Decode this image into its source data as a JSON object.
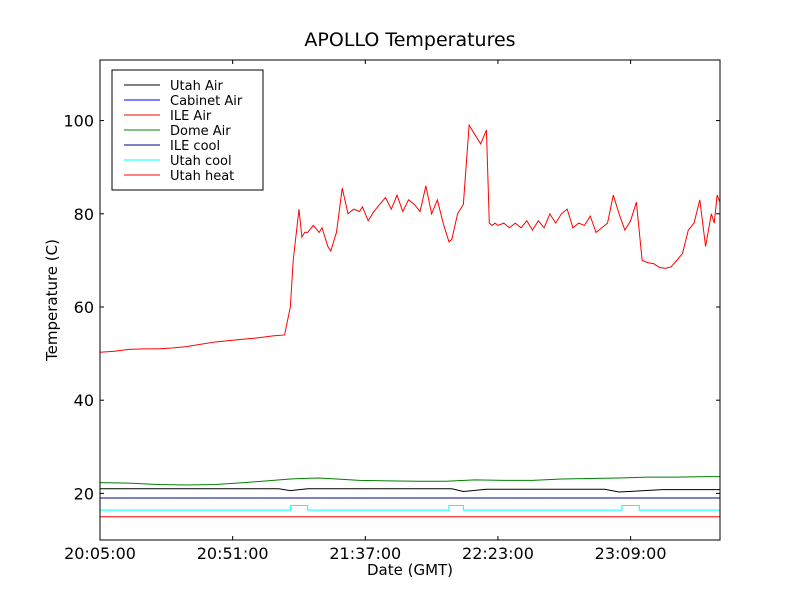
{
  "chart_data": {
    "type": "line",
    "title": "APOLLO Temperatures",
    "xlabel": "Date (GMT)",
    "ylabel": "Temperature (C)",
    "x_unit": "minutes since 20:05:00",
    "xlim": [
      0,
      215
    ],
    "ylim": [
      10,
      113
    ],
    "x_ticks": [
      0,
      46,
      92,
      138,
      184
    ],
    "x_tick_labels": [
      "20:05:00",
      "20:51:00",
      "21:37:00",
      "22:23:00",
      "23:09:00"
    ],
    "y_ticks": [
      20,
      40,
      60,
      80,
      100
    ],
    "y_tick_labels": [
      "20",
      "40",
      "60",
      "80",
      "100"
    ],
    "legend_position": "upper-left",
    "series": [
      {
        "name": "Utah Air",
        "color": "#000000",
        "x": [
          0,
          62,
          66,
          72,
          122,
          126,
          134,
          175,
          180,
          195,
          215
        ],
        "y": [
          21,
          21,
          20.6,
          21,
          21,
          20.4,
          20.9,
          20.9,
          20.3,
          20.8,
          20.8
        ]
      },
      {
        "name": "Cabinet Air",
        "color": "#0000ff",
        "x": [
          0,
          215
        ],
        "y": [
          19,
          19
        ]
      },
      {
        "name": "ILE Air",
        "color": "#ff0000",
        "x": [
          0,
          5,
          10,
          15,
          20,
          25,
          30,
          35,
          40,
          45,
          50,
          55,
          60,
          64,
          66,
          67,
          69,
          70,
          71,
          72,
          74,
          76,
          77,
          79,
          80,
          82,
          84,
          86,
          88,
          90,
          91,
          93,
          95,
          97,
          99,
          101,
          103,
          105,
          107,
          109,
          111,
          113,
          115,
          117,
          119,
          121,
          122,
          124,
          126,
          128,
          130,
          132,
          134,
          135,
          136,
          137,
          138,
          140,
          142,
          144,
          146,
          148,
          150,
          152,
          154,
          156,
          158,
          160,
          162,
          164,
          166,
          168,
          170,
          172,
          174,
          176,
          178,
          180,
          182,
          184,
          186,
          188,
          190,
          192,
          194,
          196,
          198,
          200,
          202,
          204,
          206,
          208,
          210,
          212,
          213,
          214,
          215
        ],
        "y": [
          50.3,
          50.5,
          50.9,
          51,
          51,
          51.2,
          51.5,
          52,
          52.5,
          52.8,
          53.1,
          53.4,
          53.8,
          54,
          60,
          70,
          81,
          75,
          76,
          76,
          77.5,
          76,
          77,
          73,
          72,
          76,
          85.5,
          80,
          81,
          80.5,
          81.5,
          78.5,
          80.5,
          82,
          83.5,
          81,
          84,
          80.5,
          83,
          82,
          80.5,
          86,
          80,
          83,
          78,
          74,
          74.5,
          80,
          82,
          99,
          97,
          95,
          98,
          78,
          77.5,
          78,
          77.5,
          78,
          77,
          78,
          77,
          78.5,
          76.5,
          78.5,
          77,
          80,
          78,
          80,
          81,
          77,
          78,
          77.5,
          79.5,
          76,
          77,
          78,
          84,
          80,
          76.5,
          78.5,
          82.5,
          70,
          69.5,
          69.3,
          68.5,
          68.3,
          68.6,
          70,
          71.5,
          76.5,
          78,
          83,
          73,
          80,
          78,
          84,
          82.5
        ]
      },
      {
        "name": "Dome Air",
        "color": "#008000",
        "x": [
          0,
          10,
          20,
          30,
          40,
          50,
          60,
          66,
          70,
          76,
          82,
          90,
          100,
          110,
          120,
          130,
          140,
          150,
          160,
          170,
          180,
          190,
          200,
          210,
          215
        ],
        "y": [
          22.3,
          22.2,
          21.9,
          21.8,
          21.9,
          22.3,
          22.8,
          23.1,
          23.2,
          23.3,
          23.1,
          22.8,
          22.7,
          22.6,
          22.6,
          22.9,
          22.8,
          22.8,
          23.1,
          23.2,
          23.3,
          23.5,
          23.5,
          23.6,
          23.6
        ]
      },
      {
        "name": "ILE cool",
        "color": "#000080",
        "x": [
          0,
          215
        ],
        "y": [
          19,
          19
        ]
      },
      {
        "name": "Utah cool",
        "color": "#00ffff",
        "x": [
          0,
          66,
          66,
          72,
          72,
          121,
          121,
          126,
          126,
          181,
          181,
          187,
          187,
          215
        ],
        "y": [
          16.4,
          16.4,
          17.4,
          17.4,
          16.4,
          16.4,
          17.4,
          17.4,
          16.4,
          16.4,
          17.4,
          17.4,
          16.4,
          16.4
        ]
      },
      {
        "name": "Utah heat",
        "color": "#ff0000",
        "x": [
          0,
          215
        ],
        "y": [
          15,
          15
        ]
      }
    ]
  }
}
